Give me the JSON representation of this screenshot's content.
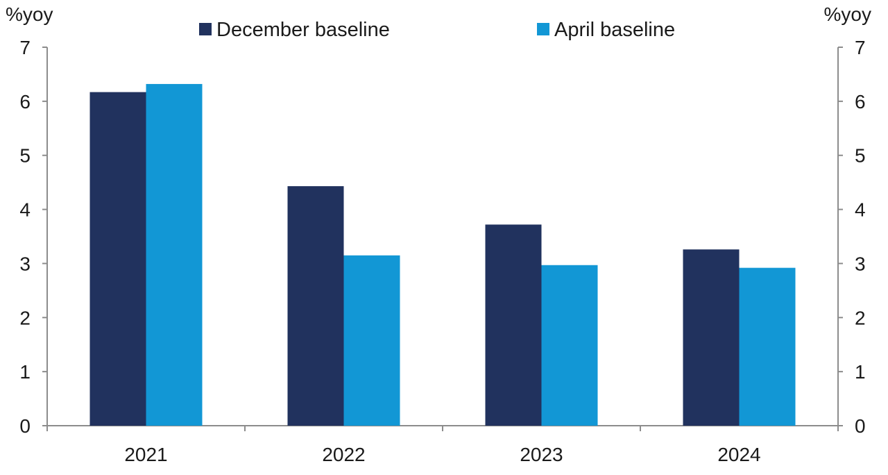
{
  "chart_data": {
    "type": "bar",
    "categories": [
      "2021",
      "2022",
      "2023",
      "2024"
    ],
    "series": [
      {
        "name": "December baseline",
        "values": [
          6.17,
          4.43,
          3.72,
          3.26
        ],
        "color": "#21325e"
      },
      {
        "name": "April baseline",
        "values": [
          6.32,
          3.15,
          2.97,
          2.92
        ],
        "color": "#1297d5"
      }
    ],
    "ylim": [
      0,
      7
    ],
    "yticks": [
      "0",
      "1",
      "2",
      "3",
      "4",
      "5",
      "6",
      "7"
    ],
    "ylabel_left": "%yoy",
    "ylabel_right": "%yoy",
    "legend_position": "top-center",
    "grid": false,
    "axis_color": "#8c8c8c"
  }
}
